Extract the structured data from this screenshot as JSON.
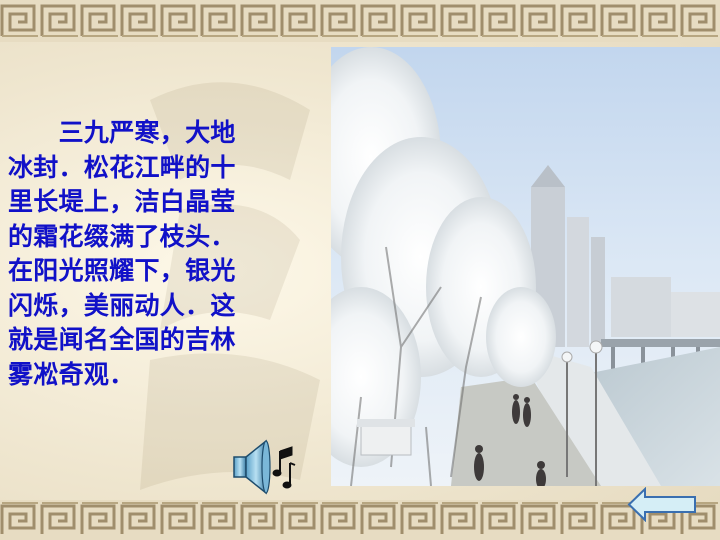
{
  "poem": {
    "lines": [
      "　　三九严寒，大地",
      "冰封．松花江畔的十",
      "里长堤上，洁白晶莹",
      "的霜花缀满了枝头．",
      "在阳光照耀下，银光",
      "闪烁，美丽动人．这",
      "就是闻名全国的吉林",
      "雾凇奇观．"
    ],
    "color": "#1111c8"
  },
  "photo": {
    "subject": "rime-covered trees along the riverbank promenade",
    "sky_color": "#d3e2f2",
    "frost_color": "#ffffff"
  },
  "controls": {
    "sound_icon": "speaker-with-music-notes-icon",
    "back_icon": "left-arrow-icon",
    "back_color": "#d5eef6"
  },
  "decor": {
    "border_color": "#c9b89a",
    "pattern": "greek-key-fret"
  }
}
